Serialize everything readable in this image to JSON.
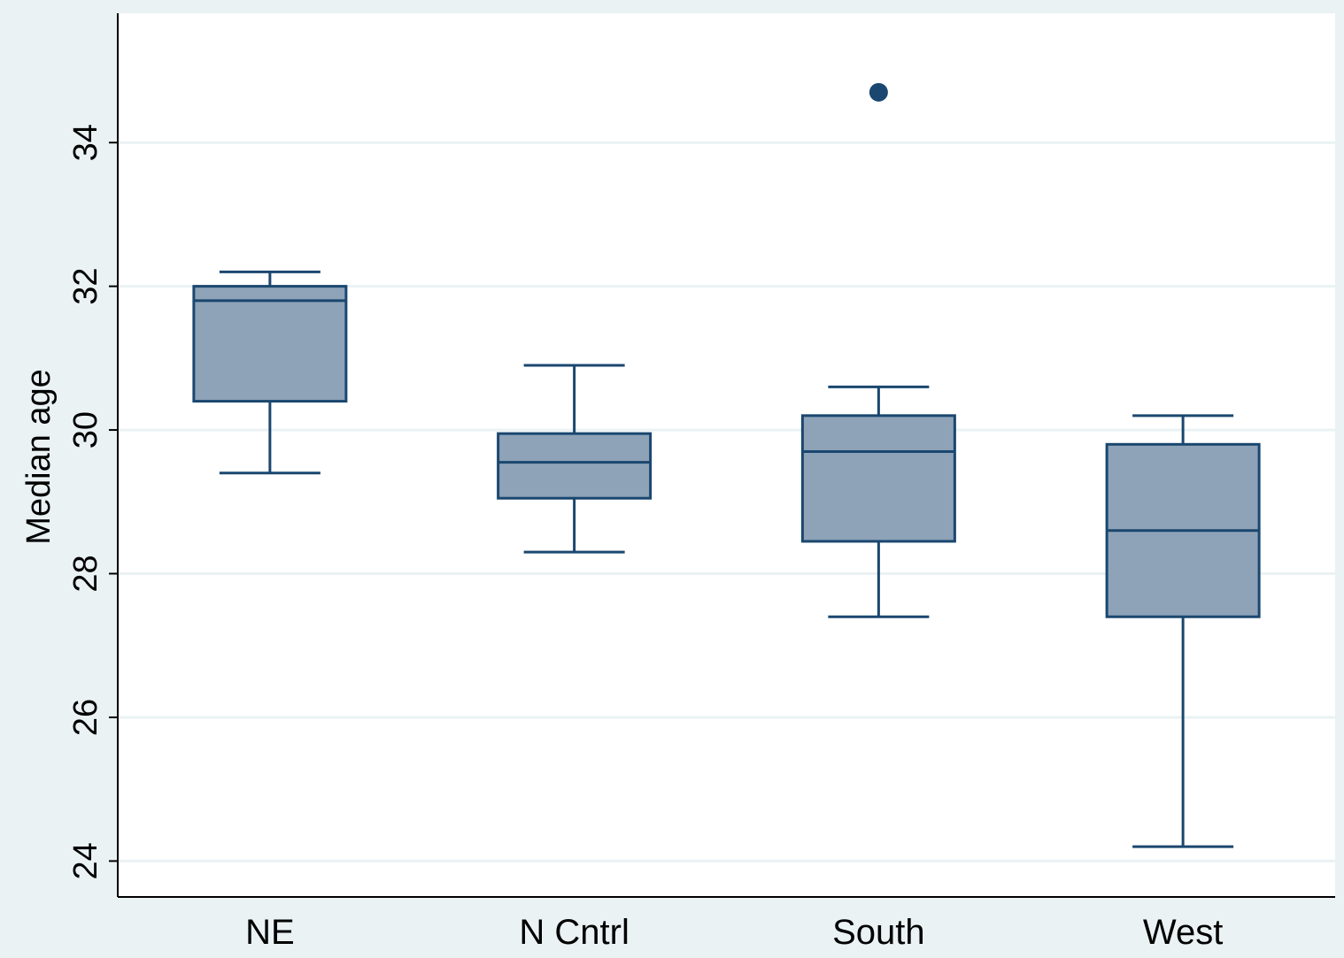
{
  "chart_data": {
    "type": "box",
    "ylabel": "Median age",
    "xlabel": "",
    "ylim": [
      23.5,
      35.8
    ],
    "yticks": [
      24,
      26,
      28,
      30,
      32,
      34
    ],
    "grid": true,
    "categories": [
      "NE",
      "N Cntrl",
      "South",
      "West"
    ],
    "boxes": [
      {
        "category": "NE",
        "whisker_low": 29.4,
        "q1": 30.4,
        "median": 31.8,
        "q3": 32.0,
        "whisker_high": 32.2,
        "outliers": []
      },
      {
        "category": "N Cntrl",
        "whisker_low": 28.3,
        "q1": 29.05,
        "median": 29.55,
        "q3": 29.95,
        "whisker_high": 30.9,
        "outliers": []
      },
      {
        "category": "South",
        "whisker_low": 27.4,
        "q1": 28.45,
        "median": 29.7,
        "q3": 30.2,
        "whisker_high": 30.6,
        "outliers": [
          34.7
        ]
      },
      {
        "category": "West",
        "whisker_low": 24.2,
        "q1": 27.4,
        "median": 28.6,
        "q3": 29.8,
        "whisker_high": 30.2,
        "outliers": []
      }
    ],
    "colors": {
      "box_fill": "#8ea3b8",
      "box_stroke": "#1a476f",
      "plot_background": "#ffffff",
      "outer_background": "#eaf2f3",
      "grid": "#eaf2f3",
      "axis": "#000000"
    }
  }
}
